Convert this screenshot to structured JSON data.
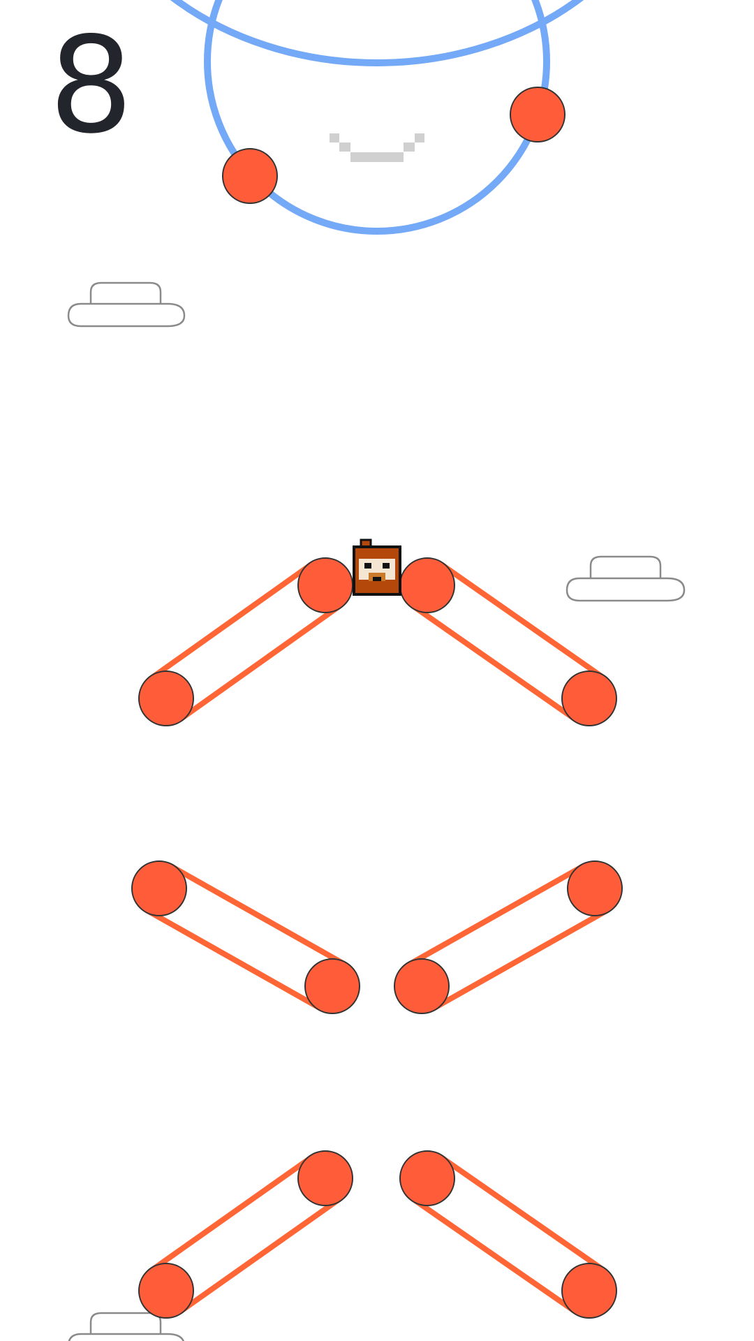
{
  "hud": {
    "score": "8"
  },
  "colors": {
    "background": "#ffffff",
    "score_text": "#22252b",
    "ring": "#74a9f7",
    "ball": "#ff5c3a",
    "ball_outline": "#333333",
    "band": "#ff6535",
    "cloud_outline": "#8a8a8a",
    "smile": "#d0d0d0",
    "character_fur": "#b3480a",
    "character_face": "#f4e6d2",
    "character_outline": "#111111"
  },
  "icons": {
    "player": "pixel-monkey-character",
    "cloud": "cloud-outline",
    "ring": "rotating-ring-obstacle",
    "paddle": "rubber-band-paddle"
  }
}
